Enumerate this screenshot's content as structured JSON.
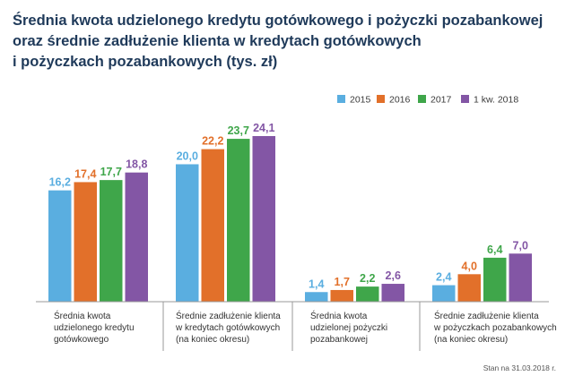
{
  "title_lines": [
    "Średnia kwota udzielonego kredytu gotówkowego i pożyczki pozabankowej",
    "oraz średnie zadłużenie klienta w kredytach gotówkowych",
    "i pożyczkach pozabankowych (tys. zł)"
  ],
  "footnote": "Stan na 31.03.2018 r.",
  "colors": {
    "2015": "#5aaee0",
    "2016": "#e2702a",
    "2017": "#3fa64a",
    "1 kw. 2018": "#8356a5"
  },
  "chart_data": {
    "type": "bar",
    "title": "Średnia kwota udzielonego kredytu gotówkowego i pożyczki pozabankowej oraz średnie zadłużenie klienta w kredytach gotówkowych i pożyczkach pozabankowych (tys. zł)",
    "categories": [
      [
        "Średnia kwota",
        "udzielonego kredytu",
        "gotówkowego"
      ],
      [
        "Średnie zadłużenie klienta",
        "w kredytach gotówkowych",
        "(na koniec okresu)"
      ],
      [
        "Średnia kwota",
        "udzielonej pożyczki",
        "pozabankowej"
      ],
      [
        "Średnie zadłużenie klienta",
        "w pożyczkach pozabankowych",
        "(na koniec okresu)"
      ]
    ],
    "series": [
      {
        "name": "2015",
        "values": [
          16.2,
          20.0,
          1.4,
          2.4
        ],
        "labels": [
          "16,2",
          "20,0",
          "1,4",
          "2,4"
        ]
      },
      {
        "name": "2016",
        "values": [
          17.4,
          22.2,
          1.7,
          4.0
        ],
        "labels": [
          "17,4",
          "22,2",
          "1,7",
          "4,0"
        ]
      },
      {
        "name": "2017",
        "values": [
          17.7,
          23.7,
          2.2,
          6.4
        ],
        "labels": [
          "17,7",
          "23,7",
          "2,2",
          "6,4"
        ]
      },
      {
        "name": "1 kw. 2018",
        "values": [
          18.8,
          24.1,
          2.6,
          7.0
        ],
        "labels": [
          "18,8",
          "24,1",
          "2,6",
          "7,0"
        ]
      }
    ],
    "xlabel": "",
    "ylabel": "",
    "ylim": [
      0,
      24.1
    ],
    "grid": false,
    "legend": "top-right"
  }
}
